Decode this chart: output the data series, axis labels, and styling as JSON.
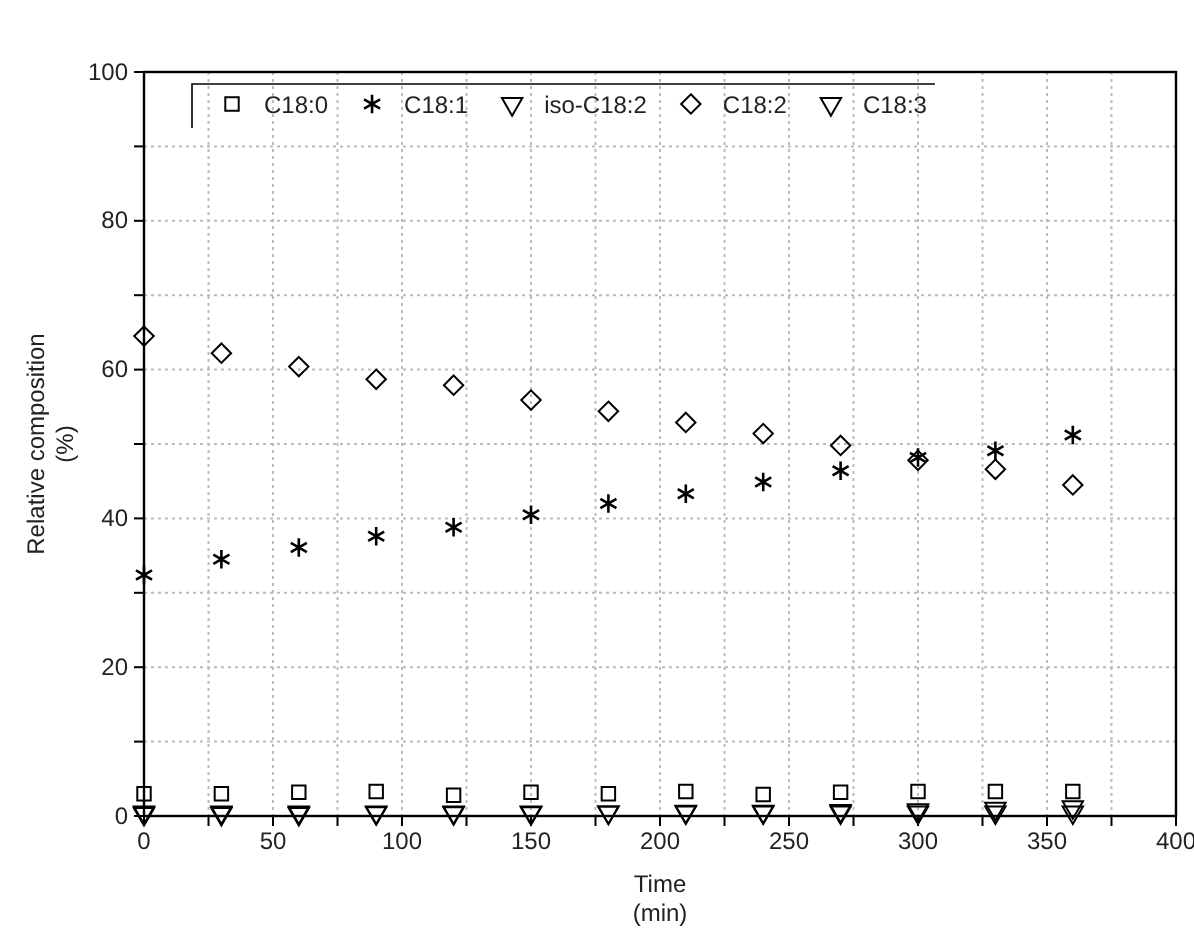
{
  "chart_data": {
    "type": "scatter",
    "xlabel": "Time\n(min)",
    "ylabel": "Relative composition\n(%)",
    "x": [
      0,
      30,
      60,
      90,
      120,
      150,
      180,
      210,
      240,
      270,
      300,
      330,
      360
    ],
    "xlim": [
      0,
      400
    ],
    "xticks": [
      0,
      {
        "value": 25,
        "label": null
      },
      50,
      {
        "value": 75,
        "label": null
      },
      100,
      {
        "value": 125,
        "label": null
      },
      150,
      {
        "value": 175,
        "label": null
      },
      200,
      {
        "value": 225,
        "label": null
      },
      250,
      {
        "value": 275,
        "label": null
      },
      300,
      {
        "value": 325,
        "label": null
      },
      350,
      {
        "value": 375,
        "label": null
      },
      400
    ],
    "ylim": [
      0,
      100
    ],
    "yticks": [
      0,
      {
        "value": 10,
        "label": null
      },
      20,
      {
        "value": 30,
        "label": null
      },
      40,
      {
        "value": 50,
        "label": null
      },
      60,
      {
        "value": 70,
        "label": null
      },
      80,
      {
        "value": 90,
        "label": null
      },
      100
    ],
    "grid": true,
    "legend": "top left",
    "series": [
      {
        "name": "C18:0",
        "color": "#000000",
        "marker": "square",
        "values": [
          3.0,
          3.0,
          3.2,
          3.3,
          2.8,
          3.2,
          3.0,
          3.3,
          2.9,
          3.2,
          3.3,
          3.3,
          3.3
        ]
      },
      {
        "name": "C18:1",
        "color": "#000000",
        "marker": "cross",
        "values": [
          32.4,
          34.5,
          36.1,
          37.6,
          38.8,
          40.5,
          42.0,
          43.3,
          44.9,
          46.4,
          48.2,
          49.1,
          51.2
        ]
      },
      {
        "name": "iso-C18:2",
        "color": "#000000",
        "marker": "triangle",
        "values": [
          0.3,
          0.3,
          0.3,
          0.4,
          0.4,
          0.4,
          0.5,
          0.6,
          0.6,
          0.7,
          0.8,
          1.0,
          1.2
        ]
      },
      {
        "name": "C18:2",
        "color": "#000000",
        "marker": "diamond",
        "values": [
          64.5,
          62.2,
          60.4,
          58.7,
          57.9,
          55.9,
          54.4,
          52.9,
          51.4,
          49.8,
          47.8,
          46.6,
          44.5
        ]
      },
      {
        "name": "C18:3",
        "color": "#000000",
        "marker": "triangle",
        "values": [
          0.5,
          0.5,
          0.5,
          0.5,
          0.5,
          0.5,
          0.5,
          0.5,
          0.5,
          0.5,
          0.5,
          0.5,
          0.5
        ]
      }
    ]
  }
}
